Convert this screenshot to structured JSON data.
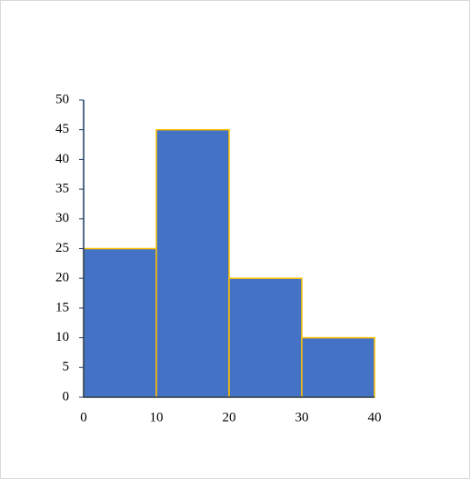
{
  "chart_data": {
    "type": "histogram",
    "bins": [
      0,
      10,
      20,
      30,
      40
    ],
    "values": [
      25,
      45,
      20,
      10
    ],
    "color": "#4472c4",
    "edgecolor": "#ffc000",
    "xlim": [
      0,
      40
    ],
    "xticks": [
      0,
      10,
      20,
      30,
      40
    ],
    "ylim": [
      0,
      50
    ],
    "yticks": [
      0,
      5,
      10,
      15,
      20,
      25,
      30,
      35,
      40,
      45,
      50
    ],
    "grid": false
  }
}
